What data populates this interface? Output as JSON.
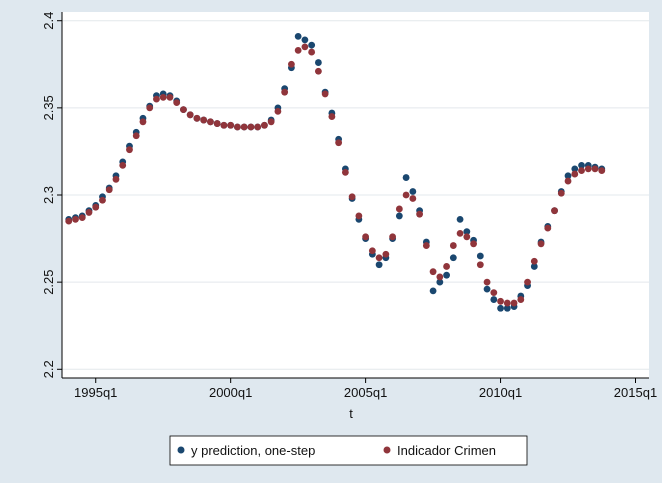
{
  "chart_data": {
    "type": "scatter",
    "xlabel": "t",
    "ylabel": "",
    "title": "",
    "x_ticks": [
      "1995q1",
      "2000q1",
      "2005q1",
      "2010q1",
      "2015q1"
    ],
    "y_ticks": [
      "2.2",
      "2.25",
      "2.3",
      "2.35",
      "2.4"
    ],
    "xlim": [
      "1993q4",
      "2015q3"
    ],
    "ylim": [
      2.195,
      2.405
    ],
    "grid": "horizontal",
    "legend_position": "bottom",
    "x": [
      "1994q1",
      "1994q2",
      "1994q3",
      "1994q4",
      "1995q1",
      "1995q2",
      "1995q3",
      "1995q4",
      "1996q1",
      "1996q2",
      "1996q3",
      "1996q4",
      "1997q1",
      "1997q2",
      "1997q3",
      "1997q4",
      "1998q1",
      "1998q2",
      "1998q3",
      "1998q4",
      "1999q1",
      "1999q2",
      "1999q3",
      "1999q4",
      "2000q1",
      "2000q2",
      "2000q3",
      "2000q4",
      "2001q1",
      "2001q2",
      "2001q3",
      "2001q4",
      "2002q1",
      "2002q2",
      "2002q3",
      "2002q4",
      "2003q1",
      "2003q2",
      "2003q3",
      "2003q4",
      "2004q1",
      "2004q2",
      "2004q3",
      "2004q4",
      "2005q1",
      "2005q2",
      "2005q3",
      "2005q4",
      "2006q1",
      "2006q2",
      "2006q3",
      "2006q4",
      "2007q1",
      "2007q2",
      "2007q3",
      "2007q4",
      "2008q1",
      "2008q2",
      "2008q3",
      "2008q4",
      "2009q1",
      "2009q2",
      "2009q3",
      "2009q4",
      "2010q1",
      "2010q2",
      "2010q3",
      "2010q4",
      "2011q1",
      "2011q2",
      "2011q3",
      "2011q4",
      "2012q1",
      "2012q2",
      "2012q3",
      "2012q4",
      "2013q1",
      "2013q2",
      "2013q3",
      "2013q4"
    ],
    "series": [
      {
        "name": "y prediction, one-step",
        "color": "#1a476f",
        "values": [
          2.286,
          2.287,
          2.288,
          2.291,
          2.294,
          2.299,
          2.304,
          2.311,
          2.319,
          2.328,
          2.336,
          2.344,
          2.351,
          2.357,
          2.358,
          2.357,
          2.354,
          2.349,
          2.346,
          2.344,
          2.343,
          2.342,
          2.341,
          2.34,
          2.34,
          2.339,
          2.339,
          2.339,
          2.339,
          2.34,
          2.343,
          2.35,
          2.361,
          2.373,
          2.391,
          2.389,
          2.386,
          2.376,
          2.359,
          2.347,
          2.332,
          2.315,
          2.298,
          2.286,
          2.275,
          2.266,
          2.26,
          2.264,
          2.275,
          2.288,
          2.31,
          2.302,
          2.291,
          2.273,
          2.245,
          2.25,
          2.254,
          2.264,
          2.286,
          2.279,
          2.274,
          2.265,
          2.246,
          2.24,
          2.235,
          2.235,
          2.236,
          2.242,
          2.248,
          2.259,
          2.273,
          2.282,
          2.291,
          2.302,
          2.311,
          2.315,
          2.317,
          2.317,
          2.316,
          2.315
        ]
      },
      {
        "name": "Indicador Crimen",
        "color": "#90353b",
        "values": [
          2.285,
          2.286,
          2.287,
          2.29,
          2.293,
          2.297,
          2.303,
          2.309,
          2.317,
          2.326,
          2.334,
          2.342,
          2.35,
          2.355,
          2.356,
          2.356,
          2.353,
          2.349,
          2.346,
          2.344,
          2.343,
          2.342,
          2.341,
          2.34,
          2.34,
          2.339,
          2.339,
          2.339,
          2.339,
          2.34,
          2.342,
          2.348,
          2.359,
          2.375,
          2.383,
          2.385,
          2.382,
          2.371,
          2.358,
          2.345,
          2.33,
          2.313,
          2.299,
          2.288,
          2.276,
          2.268,
          2.264,
          2.266,
          2.276,
          2.292,
          2.3,
          2.298,
          2.289,
          2.271,
          2.256,
          2.253,
          2.259,
          2.271,
          2.278,
          2.276,
          2.272,
          2.26,
          2.25,
          2.244,
          2.239,
          2.238,
          2.238,
          2.24,
          2.25,
          2.262,
          2.272,
          2.281,
          2.291,
          2.301,
          2.308,
          2.312,
          2.314,
          2.315,
          2.315,
          2.314
        ]
      }
    ]
  }
}
